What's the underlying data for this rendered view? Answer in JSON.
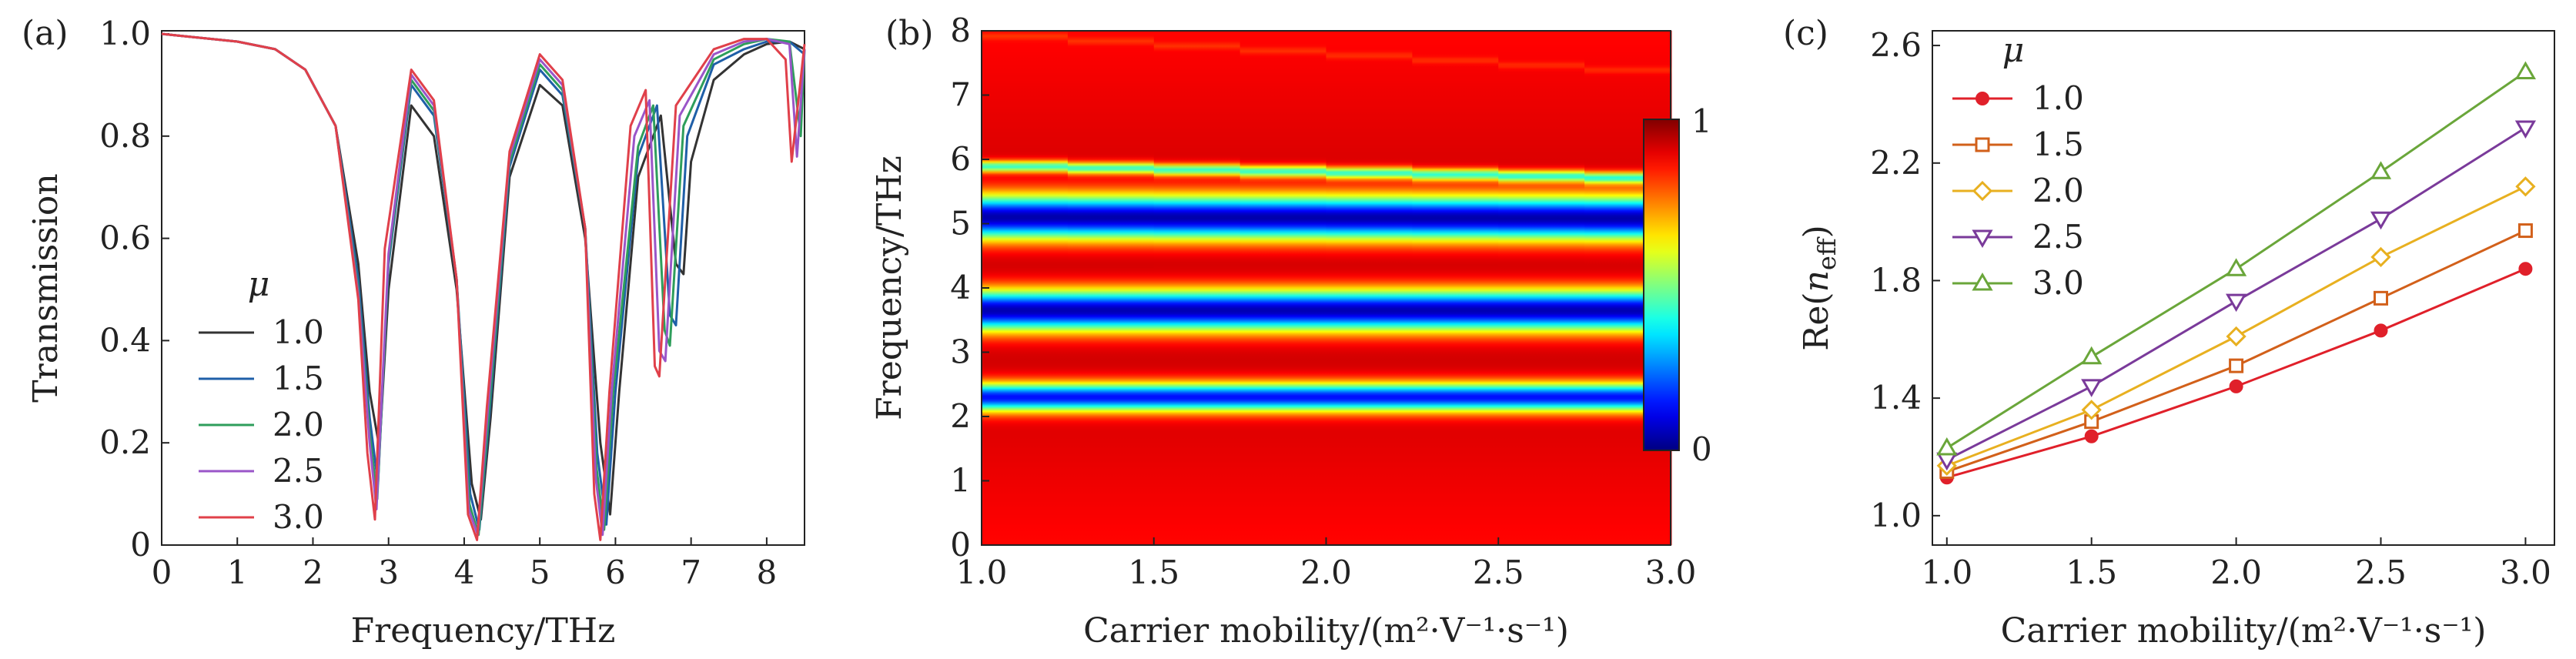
{
  "figure": {
    "panels": [
      {
        "tag": "(a)"
      },
      {
        "tag": "(b)"
      },
      {
        "tag": "(c)"
      }
    ]
  },
  "chart_data": [
    {
      "type": "line",
      "panel": "(a)",
      "title": "",
      "xlabel": "Frequency/THz",
      "ylabel": "Transmission",
      "xlim": [
        0,
        8.5
      ],
      "ylim": [
        0,
        1.0
      ],
      "x_ticks": [
        "0",
        "1",
        "2",
        "3",
        "4",
        "5",
        "6",
        "7",
        "8"
      ],
      "y_ticks": [
        "0",
        "0.2",
        "0.4",
        "0.6",
        "0.8",
        "1.0"
      ],
      "legend": {
        "title": "μ",
        "position": "lower-left"
      },
      "series": [
        {
          "name": "1.0",
          "color": "#333333",
          "x": [
            0,
            1.0,
            1.5,
            1.9,
            2.3,
            2.6,
            2.75,
            2.88,
            3.0,
            3.3,
            3.6,
            3.9,
            4.1,
            4.22,
            4.35,
            4.6,
            5.0,
            5.3,
            5.6,
            5.8,
            5.93,
            6.05,
            6.3,
            6.6,
            6.8,
            6.9,
            7.0,
            7.3,
            7.7,
            8.0,
            8.3,
            8.5
          ],
          "y": [
            1.0,
            0.985,
            0.97,
            0.93,
            0.82,
            0.55,
            0.3,
            0.19,
            0.5,
            0.86,
            0.8,
            0.5,
            0.12,
            0.05,
            0.25,
            0.72,
            0.9,
            0.86,
            0.6,
            0.2,
            0.06,
            0.3,
            0.72,
            0.84,
            0.55,
            0.53,
            0.75,
            0.91,
            0.96,
            0.98,
            0.985,
            0.97
          ]
        },
        {
          "name": "1.5",
          "color": "#1f5fa8",
          "x": [
            0,
            1.0,
            1.5,
            1.9,
            2.3,
            2.6,
            2.75,
            2.86,
            3.0,
            3.3,
            3.6,
            3.9,
            4.08,
            4.2,
            4.33,
            4.6,
            5.0,
            5.3,
            5.6,
            5.76,
            5.88,
            6.0,
            6.3,
            6.55,
            6.72,
            6.8,
            6.95,
            7.3,
            7.7,
            8.0,
            8.3,
            8.5
          ],
          "y": [
            1.0,
            0.985,
            0.97,
            0.93,
            0.82,
            0.52,
            0.25,
            0.12,
            0.55,
            0.9,
            0.84,
            0.52,
            0.1,
            0.03,
            0.25,
            0.74,
            0.93,
            0.88,
            0.62,
            0.18,
            0.04,
            0.3,
            0.76,
            0.86,
            0.45,
            0.43,
            0.8,
            0.94,
            0.97,
            0.985,
            0.985,
            0.96
          ]
        },
        {
          "name": "2.0",
          "color": "#2e9e5b",
          "x": [
            0,
            1.0,
            1.5,
            1.9,
            2.3,
            2.6,
            2.75,
            2.85,
            3.0,
            3.3,
            3.6,
            3.9,
            4.07,
            4.19,
            4.32,
            4.6,
            5.0,
            5.3,
            5.6,
            5.75,
            5.85,
            5.97,
            6.3,
            6.5,
            6.65,
            6.72,
            6.9,
            7.3,
            7.7,
            8.0,
            8.3,
            8.45,
            8.5
          ],
          "y": [
            1.0,
            0.985,
            0.97,
            0.93,
            0.82,
            0.5,
            0.22,
            0.09,
            0.56,
            0.91,
            0.85,
            0.52,
            0.08,
            0.02,
            0.25,
            0.75,
            0.94,
            0.89,
            0.62,
            0.15,
            0.03,
            0.3,
            0.78,
            0.86,
            0.42,
            0.39,
            0.82,
            0.95,
            0.98,
            0.99,
            0.985,
            0.8,
            0.97
          ]
        },
        {
          "name": "2.5",
          "color": "#9a55c8",
          "x": [
            0,
            1.0,
            1.5,
            1.9,
            2.3,
            2.6,
            2.75,
            2.84,
            3.0,
            3.3,
            3.6,
            3.9,
            4.06,
            4.18,
            4.31,
            4.6,
            5.0,
            5.3,
            5.6,
            5.74,
            5.83,
            5.95,
            6.25,
            6.45,
            6.58,
            6.66,
            6.85,
            7.3,
            7.7,
            8.0,
            8.3,
            8.4,
            8.5
          ],
          "y": [
            1.0,
            0.985,
            0.97,
            0.93,
            0.82,
            0.49,
            0.2,
            0.07,
            0.57,
            0.92,
            0.86,
            0.52,
            0.07,
            0.02,
            0.26,
            0.76,
            0.95,
            0.9,
            0.62,
            0.13,
            0.02,
            0.3,
            0.8,
            0.87,
            0.38,
            0.36,
            0.84,
            0.96,
            0.985,
            0.99,
            0.98,
            0.76,
            0.97
          ]
        },
        {
          "name": "3.0",
          "color": "#e0404a",
          "x": [
            0,
            1.0,
            1.5,
            1.9,
            2.3,
            2.6,
            2.72,
            2.82,
            2.95,
            3.3,
            3.6,
            3.9,
            4.05,
            4.17,
            4.3,
            4.6,
            5.0,
            5.3,
            5.6,
            5.72,
            5.8,
            5.92,
            6.2,
            6.4,
            6.52,
            6.58,
            6.8,
            7.3,
            7.7,
            8.0,
            8.25,
            8.33,
            8.5
          ],
          "y": [
            1.0,
            0.985,
            0.97,
            0.93,
            0.82,
            0.48,
            0.18,
            0.05,
            0.58,
            0.93,
            0.87,
            0.52,
            0.06,
            0.01,
            0.27,
            0.77,
            0.96,
            0.91,
            0.62,
            0.1,
            0.01,
            0.3,
            0.82,
            0.89,
            0.35,
            0.33,
            0.86,
            0.97,
            0.99,
            0.99,
            0.95,
            0.75,
            0.98
          ]
        }
      ]
    },
    {
      "type": "heatmap",
      "panel": "(b)",
      "title": "",
      "xlabel": "Carrier mobility/(m²·V⁻¹·s⁻¹)",
      "ylabel": "Frequency/THz",
      "xlim": [
        1.0,
        3.0
      ],
      "ylim": [
        0,
        8
      ],
      "x_ticks": [
        "1.0",
        "1.5",
        "2.0",
        "2.5",
        "3.0"
      ],
      "y_ticks": [
        "0",
        "1",
        "2",
        "3",
        "4",
        "5",
        "6",
        "7",
        "8"
      ],
      "colorbar": {
        "min": 0,
        "max": 1,
        "tick_labels": [
          "0",
          "1"
        ],
        "colormap": "jet"
      },
      "bands": [
        {
          "freq_at_1.0": 2.3,
          "freq_at_3.0": 2.3,
          "min_value": 0.15,
          "width": 0.22
        },
        {
          "freq_at_1.0": 3.65,
          "freq_at_3.0": 3.65,
          "min_value": 0.05,
          "width": 0.32
        },
        {
          "freq_at_1.0": 5.1,
          "freq_at_3.0": 5.08,
          "min_value": 0.05,
          "width": 0.34
        },
        {
          "freq_at_1.0": 5.9,
          "freq_at_3.0": 5.7,
          "min_value": 0.45,
          "width": 0.09
        },
        {
          "freq_at_1.0": 7.95,
          "freq_at_3.0": 7.35,
          "min_value": 0.88,
          "width": 0.05
        }
      ]
    },
    {
      "type": "line",
      "panel": "(c)",
      "title": "",
      "xlabel": "Carrier mobility/(m²·V⁻¹·s⁻¹)",
      "ylabel": "Re(n_eff)",
      "xlim": [
        0.95,
        3.1
      ],
      "ylim": [
        0.9,
        2.65
      ],
      "x_ticks": [
        "1.0",
        "1.5",
        "2.0",
        "2.5",
        "3.0"
      ],
      "y_ticks": [
        "1.0",
        "1.4",
        "1.8",
        "2.2",
        "2.6"
      ],
      "legend": {
        "title": "μ",
        "position": "top-left"
      },
      "x": [
        1.0,
        1.5,
        2.0,
        2.5,
        3.0
      ],
      "series": [
        {
          "name": "1.0",
          "color": "#e0202a",
          "marker": "filled-circle",
          "values": [
            1.13,
            1.27,
            1.44,
            1.63,
            1.84
          ]
        },
        {
          "name": "1.5",
          "color": "#d2601a",
          "marker": "square",
          "values": [
            1.15,
            1.32,
            1.51,
            1.74,
            1.97
          ]
        },
        {
          "name": "2.0",
          "color": "#e8b020",
          "marker": "diamond",
          "values": [
            1.17,
            1.36,
            1.61,
            1.88,
            2.12
          ]
        },
        {
          "name": "2.5",
          "color": "#7a3a9a",
          "marker": "down-triangle",
          "values": [
            1.19,
            1.44,
            1.73,
            2.01,
            2.32
          ]
        },
        {
          "name": "3.0",
          "color": "#6aa63a",
          "marker": "up-triangle",
          "values": [
            1.23,
            1.54,
            1.84,
            2.17,
            2.51
          ]
        }
      ]
    }
  ]
}
